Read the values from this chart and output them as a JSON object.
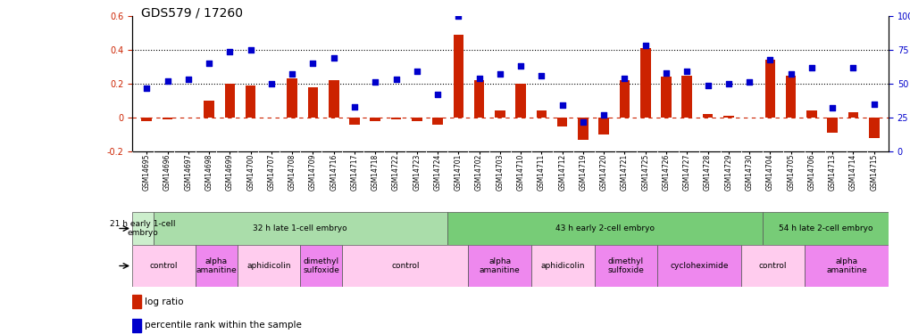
{
  "title": "GDS579 / 17260",
  "samples": [
    "GSM14695",
    "GSM14696",
    "GSM14697",
    "GSM14698",
    "GSM14699",
    "GSM14700",
    "GSM14707",
    "GSM14708",
    "GSM14709",
    "GSM14716",
    "GSM14717",
    "GSM14718",
    "GSM14722",
    "GSM14723",
    "GSM14724",
    "GSM14701",
    "GSM14702",
    "GSM14703",
    "GSM14710",
    "GSM14711",
    "GSM14712",
    "GSM14719",
    "GSM14720",
    "GSM14721",
    "GSM14725",
    "GSM14726",
    "GSM14727",
    "GSM14728",
    "GSM14729",
    "GSM14730",
    "GSM14704",
    "GSM14705",
    "GSM14706",
    "GSM14713",
    "GSM14714",
    "GSM14715"
  ],
  "log_ratio": [
    -0.02,
    -0.01,
    0.0,
    0.1,
    0.2,
    0.19,
    0.0,
    0.23,
    0.18,
    0.22,
    -0.04,
    -0.02,
    -0.01,
    -0.02,
    -0.04,
    0.49,
    0.22,
    0.04,
    0.2,
    0.04,
    -0.05,
    -0.13,
    -0.1,
    0.22,
    0.41,
    0.24,
    0.25,
    0.02,
    0.01,
    0.0,
    0.34,
    0.25,
    0.04,
    -0.09,
    0.03,
    -0.12
  ],
  "percentile": [
    47,
    52,
    53,
    65,
    74,
    75,
    50,
    57,
    65,
    69,
    33,
    51,
    53,
    59,
    42,
    100,
    54,
    57,
    63,
    56,
    34,
    22,
    27,
    54,
    78,
    58,
    59,
    49,
    50,
    51,
    68,
    57,
    62,
    32,
    62,
    35
  ],
  "dev_stage_groups": [
    {
      "label": "21 h early 1-cell\nembryο",
      "start": 0,
      "end": 1,
      "color": "#aaddaa"
    },
    {
      "label": "32 h late 1-cell embryo",
      "start": 1,
      "end": 15,
      "color": "#aaddaa"
    },
    {
      "label": "43 h early 2-cell embryo",
      "start": 15,
      "end": 30,
      "color": "#77cc77"
    },
    {
      "label": "54 h late 2-cell embryo",
      "start": 30,
      "end": 36,
      "color": "#77cc77"
    }
  ],
  "agent_groups": [
    {
      "label": "control",
      "start": 0,
      "end": 3,
      "color": "#ffccee"
    },
    {
      "label": "alpha\namanitine",
      "start": 3,
      "end": 5,
      "color": "#ee88ee"
    },
    {
      "label": "aphidicolin",
      "start": 5,
      "end": 8,
      "color": "#ffccee"
    },
    {
      "label": "dimethyl\nsulfoxide",
      "start": 8,
      "end": 10,
      "color": "#ee88ee"
    },
    {
      "label": "control",
      "start": 10,
      "end": 16,
      "color": "#ffccee"
    },
    {
      "label": "alpha\namanitine",
      "start": 16,
      "end": 19,
      "color": "#ee88ee"
    },
    {
      "label": "aphidicolin",
      "start": 19,
      "end": 22,
      "color": "#ffccee"
    },
    {
      "label": "dimethyl\nsulfoxide",
      "start": 22,
      "end": 25,
      "color": "#ee88ee"
    },
    {
      "label": "cycloheximide",
      "start": 25,
      "end": 29,
      "color": "#ee88ee"
    },
    {
      "label": "control",
      "start": 29,
      "end": 32,
      "color": "#ffccee"
    },
    {
      "label": "alpha\namanitine",
      "start": 32,
      "end": 36,
      "color": "#ee88ee"
    }
  ],
  "ylim_left": [
    -0.2,
    0.6
  ],
  "ylim_right": [
    0,
    100
  ],
  "bar_color": "#CC2200",
  "scatter_color": "#0000CC",
  "bg_color": "#ffffff"
}
